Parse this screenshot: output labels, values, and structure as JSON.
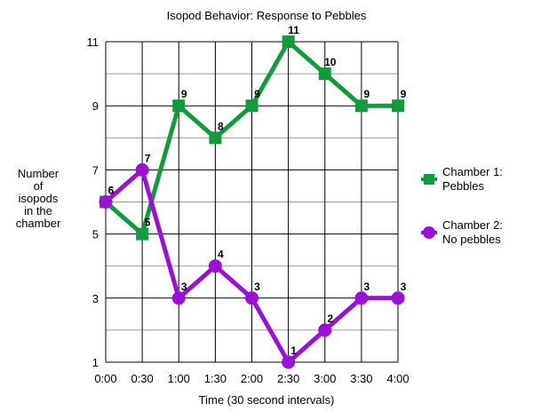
{
  "chart_data": {
    "type": "line",
    "title": "Isopod Behavior: Response to Pebbles",
    "xlabel": "Time (30 second intervals)",
    "ylabel": [
      "Number",
      "of",
      "isopods",
      "in the",
      "chamber"
    ],
    "categories": [
      "0:00",
      "0:30",
      "1:00",
      "1:30",
      "2:00",
      "2:30",
      "3:00",
      "3:30",
      "4:00"
    ],
    "y_ticks": [
      1,
      3,
      5,
      7,
      9,
      11
    ],
    "ylim": [
      1,
      11
    ],
    "grid": true,
    "legend_position": "right",
    "series": [
      {
        "name_lines": [
          "Chamber 1:",
          "Pebbles"
        ],
        "values": [
          6,
          5,
          9,
          8,
          9,
          11,
          10,
          9,
          9
        ],
        "color": "#109b3c",
        "marker": "square"
      },
      {
        "name_lines": [
          "Chamber 2:",
          "No pebbles"
        ],
        "values": [
          6,
          7,
          3,
          4,
          3,
          1,
          2,
          3,
          3
        ],
        "color": "#9b0fd6",
        "marker": "circle"
      }
    ]
  }
}
